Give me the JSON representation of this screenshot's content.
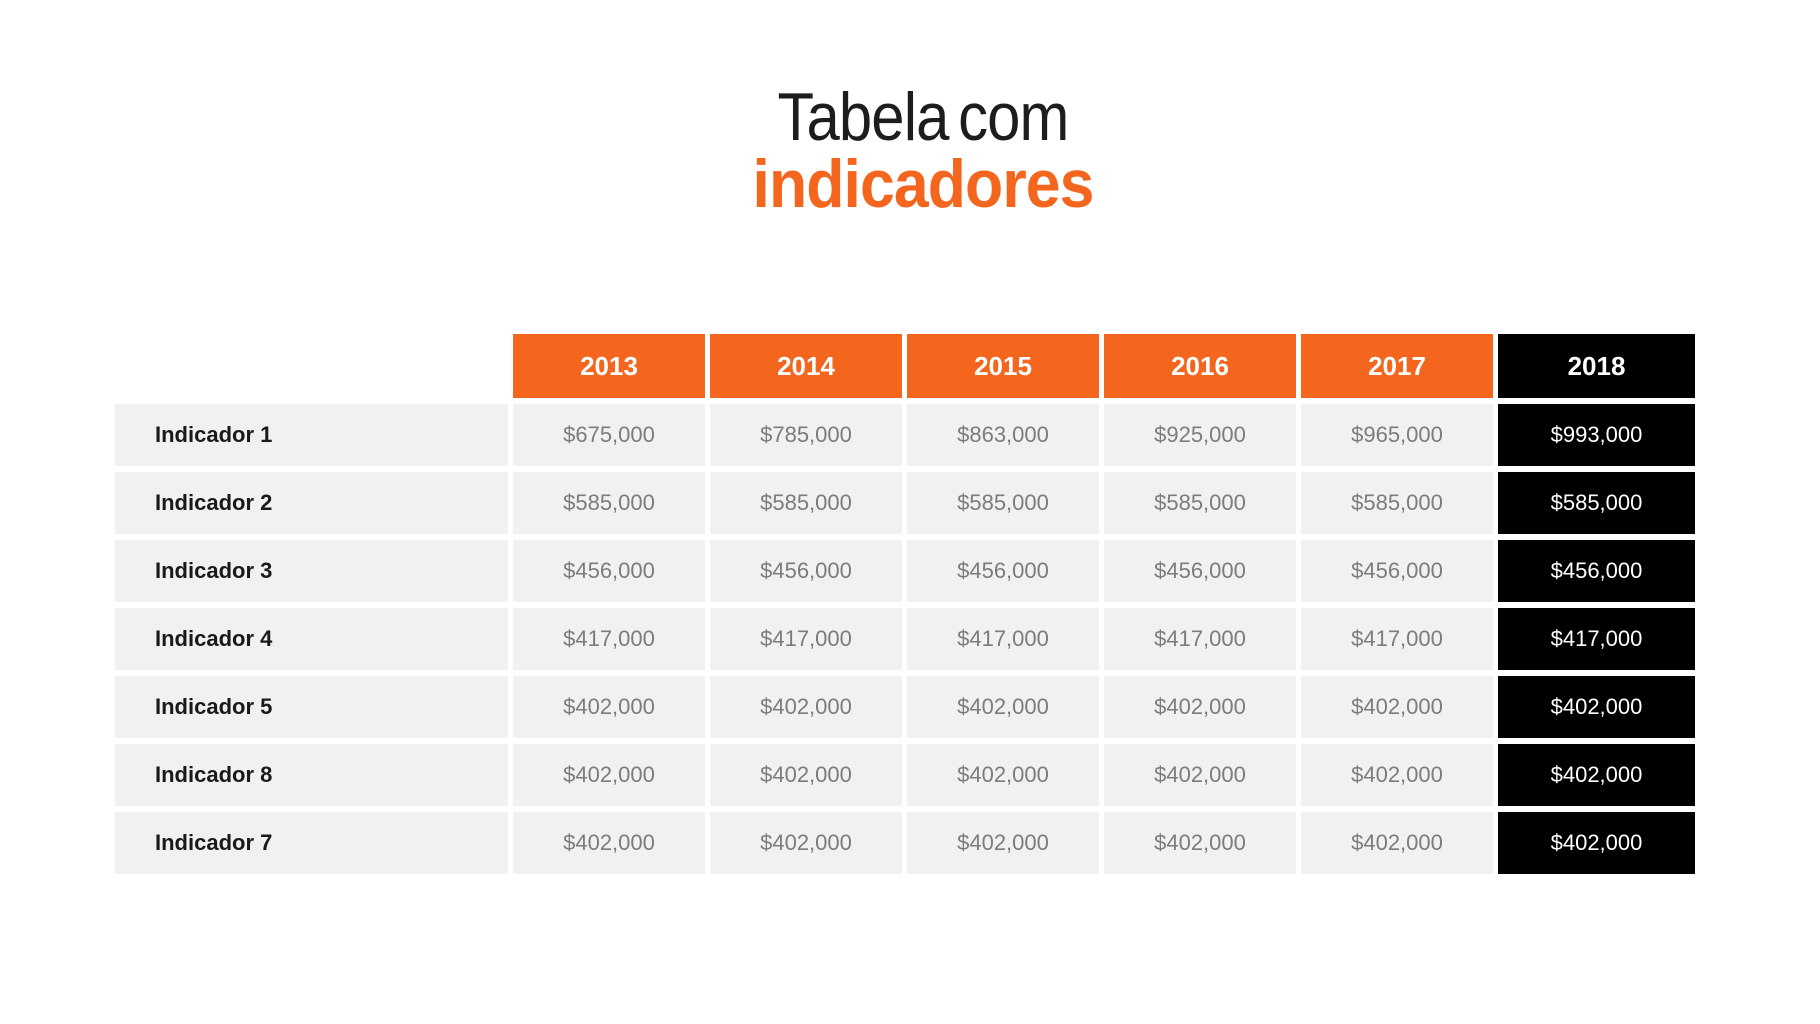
{
  "slide": {
    "title": {
      "line1": "Tabela com",
      "line2": "indicadores"
    }
  },
  "table": {
    "year_headers": [
      "2013",
      "2014",
      "2015",
      "2016",
      "2017",
      "2018"
    ],
    "highlight_column": "2018",
    "rows": [
      {
        "label": "Indicador 1",
        "values": [
          "$675,000",
          "$785,000",
          "$863,000",
          "$925,000",
          "$965,000",
          "$993,000"
        ]
      },
      {
        "label": "Indicador 2",
        "values": [
          "$585,000",
          "$585,000",
          "$585,000",
          "$585,000",
          "$585,000",
          "$585,000"
        ]
      },
      {
        "label": "Indicador 3",
        "values": [
          "$456,000",
          "$456,000",
          "$456,000",
          "$456,000",
          "$456,000",
          "$456,000"
        ]
      },
      {
        "label": "Indicador 4",
        "values": [
          "$417,000",
          "$417,000",
          "$417,000",
          "$417,000",
          "$417,000",
          "$417,000"
        ]
      },
      {
        "label": "Indicador 5",
        "values": [
          "$402,000",
          "$402,000",
          "$402,000",
          "$402,000",
          "$402,000",
          "$402,000"
        ]
      },
      {
        "label": "Indicador 8",
        "values": [
          "$402,000",
          "$402,000",
          "$402,000",
          "$402,000",
          "$402,000",
          "$402,000"
        ]
      },
      {
        "label": "Indicador 7",
        "values": [
          "$402,000",
          "$402,000",
          "$402,000",
          "$402,000",
          "$402,000",
          "$402,000"
        ]
      }
    ]
  },
  "colors": {
    "accent_orange": "#F4661D",
    "highlight_black": "#000000",
    "row_background": "#F1F1F1",
    "value_text": "#7C7C7C",
    "label_text": "#1A1A1A",
    "header_text": "#FFFFFF",
    "title_dark": "#1D1D1D"
  },
  "chart_data": {
    "type": "table",
    "title": "Tabela com indicadores",
    "categories": [
      "2013",
      "2014",
      "2015",
      "2016",
      "2017",
      "2018"
    ],
    "series": [
      {
        "name": "Indicador 1",
        "values": [
          675000,
          785000,
          863000,
          925000,
          965000,
          993000
        ]
      },
      {
        "name": "Indicador 2",
        "values": [
          585000,
          585000,
          585000,
          585000,
          585000,
          585000
        ]
      },
      {
        "name": "Indicador 3",
        "values": [
          456000,
          456000,
          456000,
          456000,
          456000,
          456000
        ]
      },
      {
        "name": "Indicador 4",
        "values": [
          417000,
          417000,
          417000,
          417000,
          417000,
          417000
        ]
      },
      {
        "name": "Indicador 5",
        "values": [
          402000,
          402000,
          402000,
          402000,
          402000,
          402000
        ]
      },
      {
        "name": "Indicador 8",
        "values": [
          402000,
          402000,
          402000,
          402000,
          402000,
          402000
        ]
      },
      {
        "name": "Indicador 7",
        "values": [
          402000,
          402000,
          402000,
          402000,
          402000,
          402000
        ]
      }
    ],
    "value_format": "$#,##0",
    "highlight_column": "2018",
    "legend_position": "none",
    "grid": false
  }
}
